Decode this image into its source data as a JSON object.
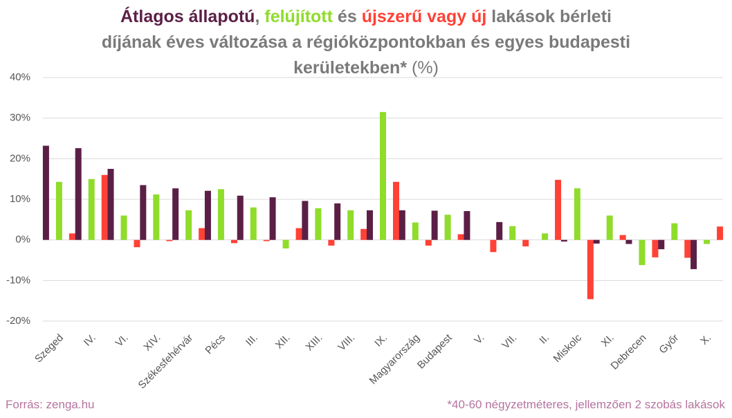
{
  "chart_data": {
    "type": "bar",
    "title_text": [
      ",",
      "és",
      "lakások bérleti",
      "díjának éves változása a régióközpontokban és egyes budapesti",
      "kerületekben*",
      "(%)"
    ],
    "categories": [
      "Szeged",
      "IV.",
      "VI.",
      "XIV.",
      "Székesfehérvár",
      "Pécs",
      "III.",
      "XII.",
      "XIII.",
      "VIII.",
      "IX.",
      "Magyarország",
      "Budapest",
      "V.",
      "VII.",
      "II.",
      "Miskolc",
      "XI.",
      "Debrecen",
      "Győr",
      "X."
    ],
    "series": [
      {
        "name": "Átlagos állapotú",
        "color": "#5b1f46",
        "values": [
          23.2,
          22.6,
          17.5,
          13.5,
          12.7,
          12.1,
          10.9,
          10.5,
          9.6,
          9.0,
          7.3,
          7.3,
          7.2,
          7.1,
          4.4,
          null,
          -0.4,
          -0.9,
          -1.0,
          -2.3,
          -7.2
        ]
      },
      {
        "name": "felújított",
        "color": "#8fdc2a",
        "values": [
          14.3,
          15.0,
          6.0,
          11.2,
          7.3,
          12.5,
          8.0,
          -2.1,
          7.8,
          7.3,
          31.5,
          4.3,
          6.2,
          null,
          3.4,
          1.6,
          12.7,
          6.0,
          -6.2,
          4.1,
          -1.0
        ]
      },
      {
        "name": "újszerű vagy új",
        "color": "#ff4136",
        "values": [
          1.6,
          16.0,
          -1.8,
          -0.3,
          2.9,
          -0.8,
          -0.3,
          2.9,
          -1.4,
          2.7,
          14.3,
          -1.4,
          1.4,
          -3.0,
          -1.6,
          14.8,
          -14.6,
          1.2,
          -4.3,
          -4.4,
          3.3
        ]
      }
    ],
    "ylim": [
      -20,
      40
    ],
    "yticks": [
      {
        "value": -20,
        "label": "-20%"
      },
      {
        "value": -10,
        "label": "-10%"
      },
      {
        "value": 0,
        "label": "0%"
      },
      {
        "value": 10,
        "label": "10%"
      },
      {
        "value": 20,
        "label": "20%"
      },
      {
        "value": 30,
        "label": "30%"
      },
      {
        "value": 40,
        "label": "40%"
      }
    ],
    "grid": true,
    "source": "Forrás: zenga.hu",
    "note": "*40-60 négyzetméteres, jellemzően 2 szobás lakások"
  }
}
